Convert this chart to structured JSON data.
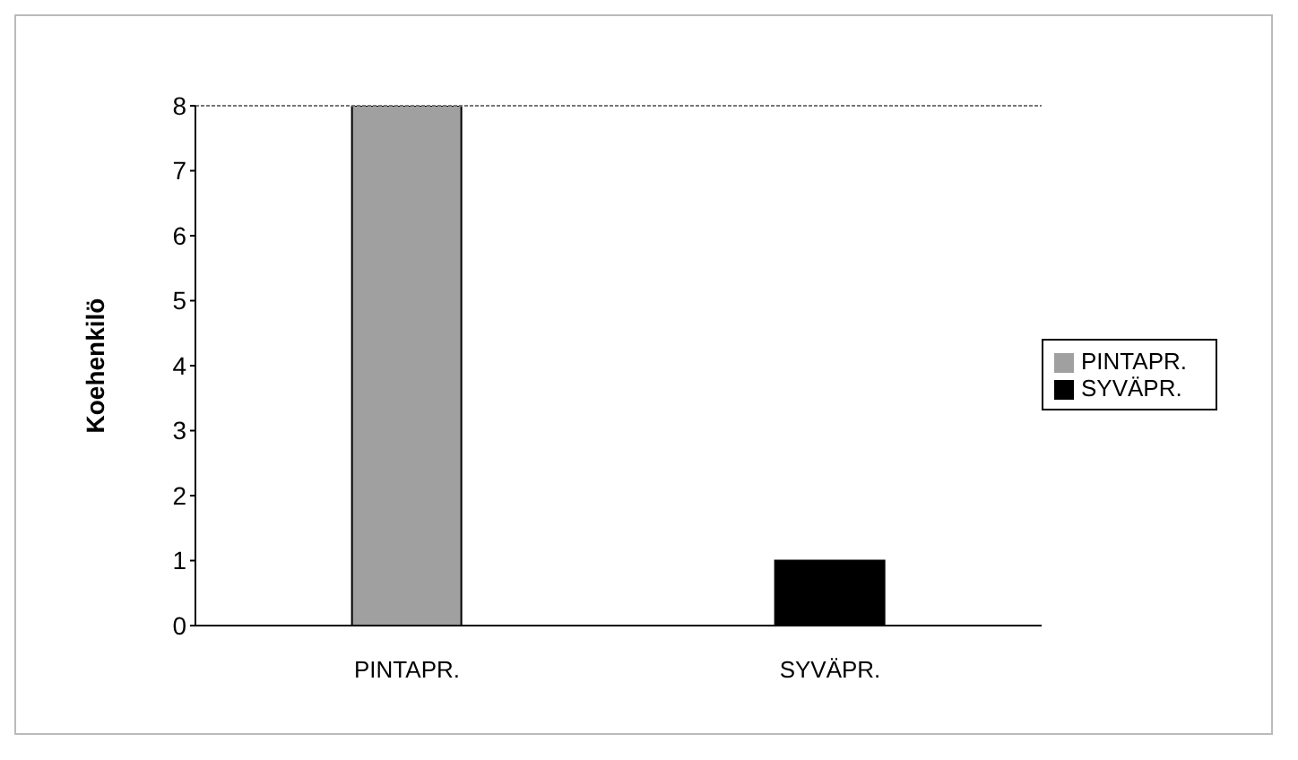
{
  "chart_data": {
    "type": "bar",
    "ylabel": "Koehenkilö",
    "categories": [
      "PINTAPR.",
      "SYVÄPR."
    ],
    "stacked": true,
    "series": [
      {
        "name": "PINTAPR.",
        "color": "#a0a0a0",
        "values": [
          8,
          null
        ]
      },
      {
        "name": "SYVÄPR.",
        "color": "#000000",
        "values": [
          null,
          1
        ]
      }
    ],
    "ylim": [
      0,
      8
    ],
    "yticks": [
      0,
      1,
      2,
      3,
      4,
      5,
      6,
      7,
      8
    ],
    "legend": "right"
  }
}
